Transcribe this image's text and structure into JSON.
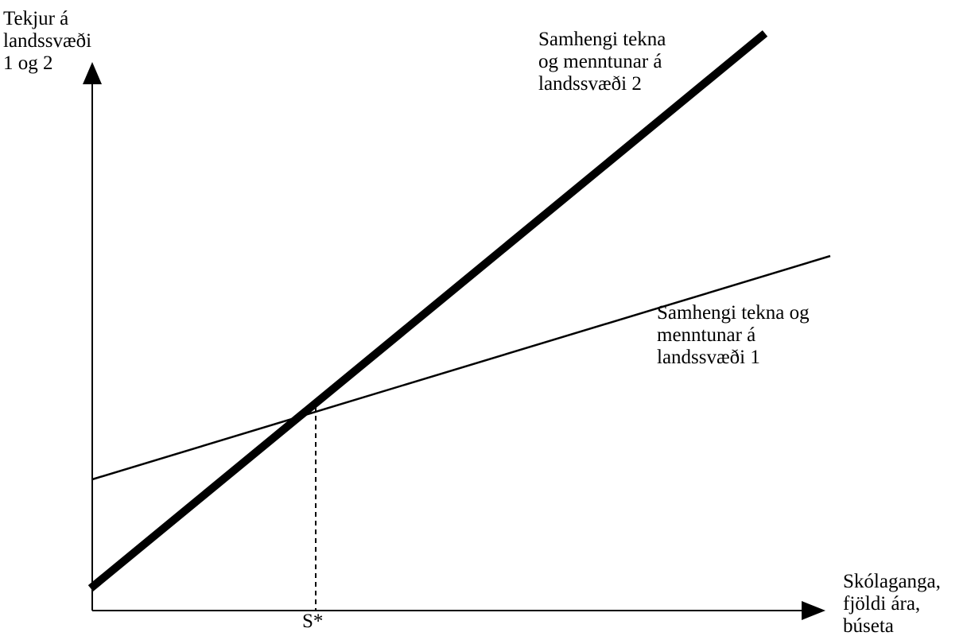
{
  "colors": {
    "ink": "#000000",
    "background": "#ffffff"
  },
  "y_axis": {
    "label_lines": [
      "Tekjur á",
      "landssvæði",
      "1 og 2"
    ]
  },
  "x_axis": {
    "label_lines": [
      "Skólaganga,",
      "fjöldi ára,",
      "búseta"
    ],
    "marker_label": "S*"
  },
  "lines": {
    "region2": {
      "label_lines": [
        "Samhengi tekna",
        "og menntunar á",
        "landssvæði 2"
      ],
      "style": "thick"
    },
    "region1": {
      "label_lines": [
        "Samhengi tekna og",
        "menntunar á",
        "landssvæði 1"
      ],
      "style": "thin"
    },
    "intersection_guide": {
      "style": "dashed"
    }
  }
}
